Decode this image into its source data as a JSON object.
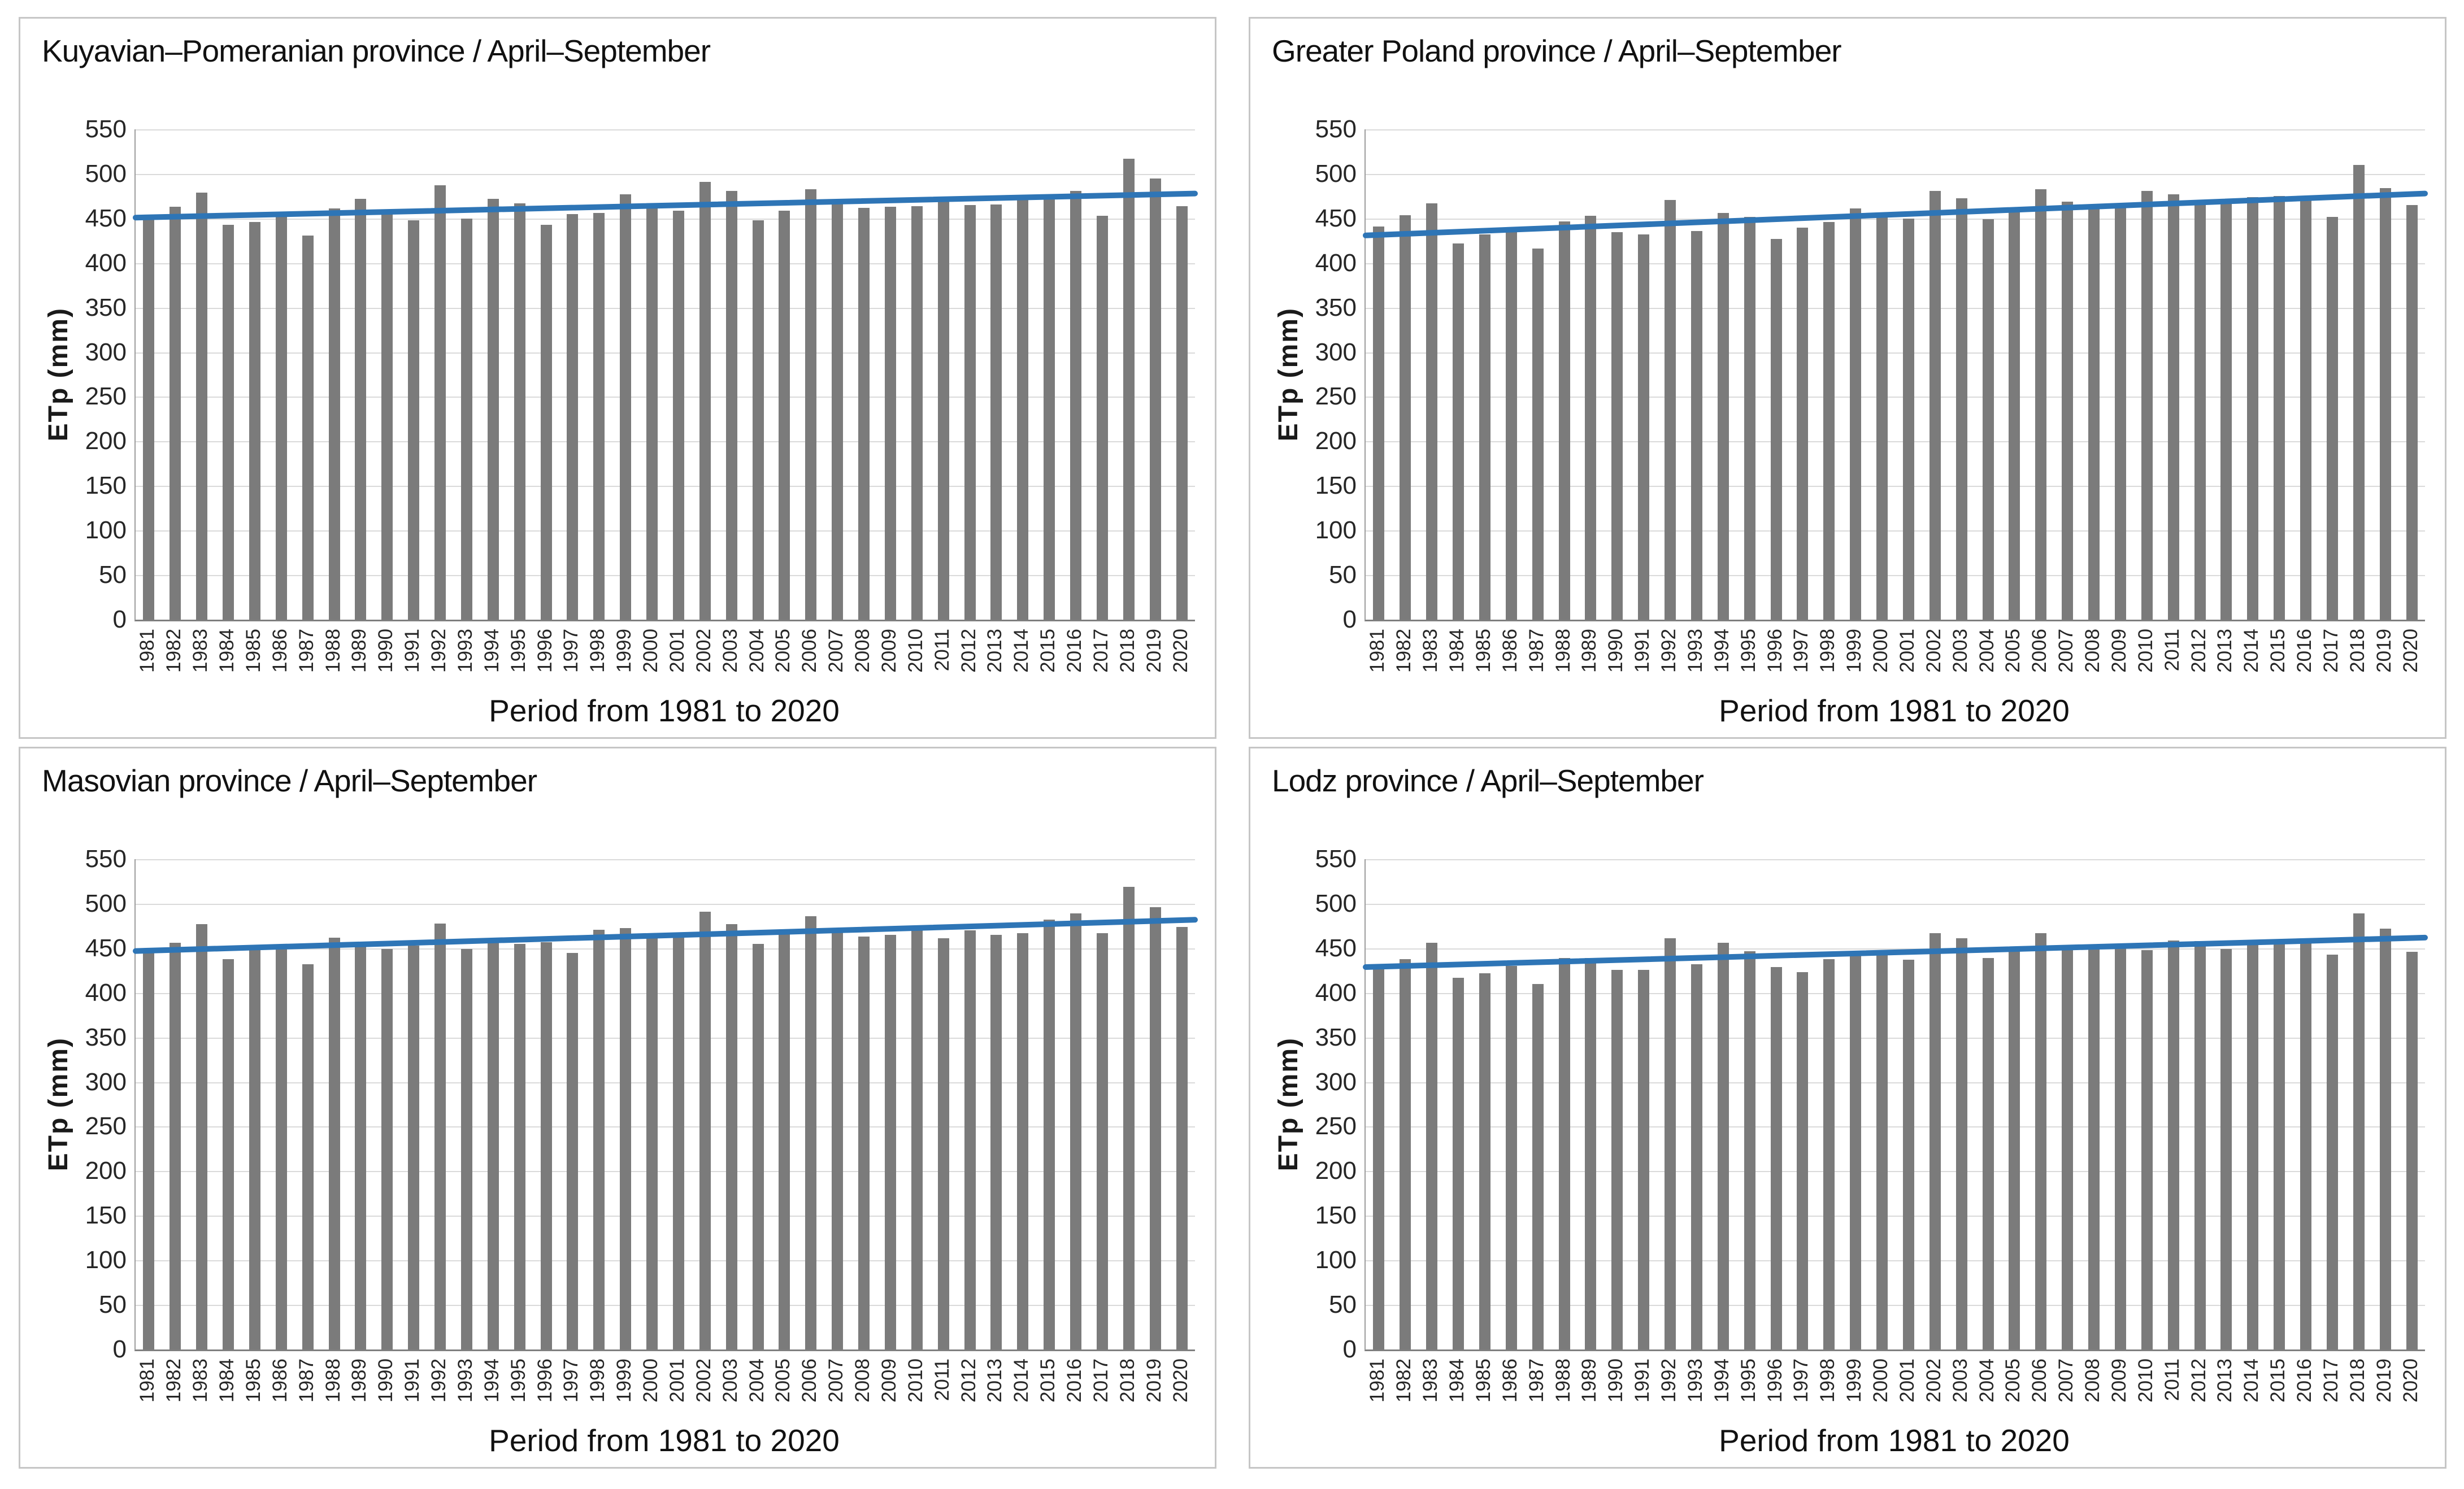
{
  "colors": {
    "bar": "#7b7b7b",
    "trend_line": "#2E75B6",
    "gridline": "#dadada",
    "axis_line": "#7f7f7f",
    "panel_border": "#c6c6c6",
    "text": "#1a1a1a"
  },
  "chart_data": [
    {
      "type": "bar",
      "title": "Kuyavian–Pomeranian province / April–September",
      "xlabel": "Period from 1981 to 2020",
      "ylabel": "ETp (mm)",
      "ylim": [
        0,
        550
      ],
      "ytick_step": 50,
      "yticks": [
        0,
        50,
        100,
        150,
        200,
        250,
        300,
        350,
        400,
        450,
        500,
        550
      ],
      "grid": true,
      "legend": "none",
      "categories": [
        "1981",
        "1982",
        "1983",
        "1984",
        "1985",
        "1986",
        "1987",
        "1988",
        "1989",
        "1990",
        "1991",
        "1992",
        "1993",
        "1994",
        "1995",
        "1996",
        "1997",
        "1998",
        "1999",
        "2000",
        "2001",
        "2002",
        "2003",
        "2004",
        "2005",
        "2006",
        "2007",
        "2008",
        "2009",
        "2010",
        "2011",
        "2012",
        "2013",
        "2014",
        "2015",
        "2016",
        "2017",
        "2018",
        "2019",
        "2020"
      ],
      "values": [
        451,
        463,
        479,
        443,
        446,
        453,
        431,
        461,
        472,
        457,
        448,
        487,
        450,
        472,
        467,
        443,
        455,
        456,
        477,
        461,
        459,
        491,
        481,
        448,
        459,
        483,
        470,
        462,
        463,
        464,
        474,
        465,
        466,
        475,
        475,
        481,
        453,
        517,
        495,
        464
      ],
      "trend": {
        "type": "linear",
        "start": 451,
        "end": 478
      }
    },
    {
      "type": "bar",
      "title": "Greater Poland province / April–September",
      "xlabel": "Period from 1981 to 2020",
      "ylabel": "ETp (mm)",
      "ylim": [
        0,
        550
      ],
      "ytick_step": 50,
      "yticks": [
        0,
        50,
        100,
        150,
        200,
        250,
        300,
        350,
        400,
        450,
        500,
        550
      ],
      "grid": true,
      "legend": "none",
      "categories": [
        "1981",
        "1982",
        "1983",
        "1984",
        "1985",
        "1986",
        "1987",
        "1988",
        "1989",
        "1990",
        "1991",
        "1992",
        "1993",
        "1994",
        "1995",
        "1996",
        "1997",
        "1998",
        "1999",
        "2000",
        "2001",
        "2002",
        "2003",
        "2004",
        "2005",
        "2006",
        "2007",
        "2008",
        "2009",
        "2010",
        "2011",
        "2012",
        "2013",
        "2014",
        "2015",
        "2016",
        "2017",
        "2018",
        "2019",
        "2020"
      ],
      "values": [
        441,
        454,
        467,
        422,
        432,
        435,
        416,
        447,
        453,
        435,
        432,
        471,
        436,
        456,
        452,
        427,
        440,
        446,
        461,
        453,
        450,
        481,
        473,
        449,
        458,
        483,
        469,
        464,
        466,
        481,
        477,
        471,
        472,
        474,
        475,
        474,
        452,
        510,
        484,
        465
      ],
      "trend": {
        "type": "linear",
        "start": 431,
        "end": 478
      }
    },
    {
      "type": "bar",
      "title": "Masovian province / April–September",
      "xlabel": "Period from 1981 to 2020",
      "ylabel": "ETp (mm)",
      "ylim": [
        0,
        550
      ],
      "ytick_step": 50,
      "yticks": [
        0,
        50,
        100,
        150,
        200,
        250,
        300,
        350,
        400,
        450,
        500,
        550
      ],
      "grid": true,
      "legend": "none",
      "categories": [
        "1981",
        "1982",
        "1983",
        "1984",
        "1985",
        "1986",
        "1987",
        "1988",
        "1989",
        "1990",
        "1991",
        "1992",
        "1993",
        "1994",
        "1995",
        "1996",
        "1997",
        "1998",
        "1999",
        "2000",
        "2001",
        "2002",
        "2003",
        "2004",
        "2005",
        "2006",
        "2007",
        "2008",
        "2009",
        "2010",
        "2011",
        "2012",
        "2013",
        "2014",
        "2015",
        "2016",
        "2017",
        "2018",
        "2019",
        "2020"
      ],
      "values": [
        445,
        456,
        477,
        438,
        450,
        450,
        432,
        462,
        453,
        449,
        453,
        478,
        449,
        461,
        455,
        457,
        445,
        471,
        473,
        463,
        464,
        491,
        477,
        455,
        470,
        486,
        470,
        463,
        465,
        470,
        461,
        470,
        465,
        467,
        482,
        489,
        467,
        519,
        496,
        474
      ],
      "trend": {
        "type": "linear",
        "start": 447,
        "end": 482
      }
    },
    {
      "type": "bar",
      "title": "Lodz province / April–September",
      "xlabel": "Period from 1981 to 2020",
      "ylabel": "ETp (mm)",
      "ylim": [
        0,
        550
      ],
      "ytick_step": 50,
      "yticks": [
        0,
        50,
        100,
        150,
        200,
        250,
        300,
        350,
        400,
        450,
        500,
        550
      ],
      "grid": true,
      "legend": "none",
      "categories": [
        "1981",
        "1982",
        "1983",
        "1984",
        "1985",
        "1986",
        "1987",
        "1988",
        "1989",
        "1990",
        "1991",
        "1992",
        "1993",
        "1994",
        "1995",
        "1996",
        "1997",
        "1998",
        "1999",
        "2000",
        "2001",
        "2002",
        "2003",
        "2004",
        "2005",
        "2006",
        "2007",
        "2008",
        "2009",
        "2010",
        "2011",
        "2012",
        "2013",
        "2014",
        "2015",
        "2016",
        "2017",
        "2018",
        "2019",
        "2020"
      ],
      "values": [
        427,
        438,
        456,
        417,
        422,
        430,
        410,
        439,
        439,
        426,
        426,
        461,
        432,
        456,
        447,
        429,
        423,
        438,
        444,
        445,
        437,
        467,
        461,
        439,
        451,
        467,
        452,
        454,
        455,
        448,
        459,
        458,
        449,
        456,
        459,
        457,
        443,
        489,
        472,
        446
      ],
      "trend": {
        "type": "linear",
        "start": 429,
        "end": 462
      }
    }
  ]
}
